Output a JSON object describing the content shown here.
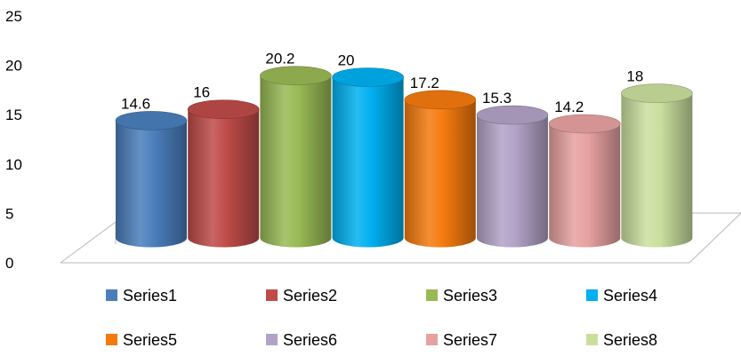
{
  "chart_data": {
    "type": "bar",
    "style": "3d-cylinder",
    "title": "",
    "xlabel": "",
    "ylabel": "",
    "ylim": [
      0,
      25
    ],
    "yticks": [
      0,
      5,
      10,
      15,
      20,
      25
    ],
    "grid": false,
    "legend_position": "bottom",
    "series": [
      {
        "name": "Series1",
        "value": 14.6,
        "label": "14.6",
        "color": "#4a7ebb"
      },
      {
        "name": "Series2",
        "value": 16,
        "label": "16",
        "color": "#be4b48"
      },
      {
        "name": "Series3",
        "value": 20.2,
        "label": "20.2",
        "color": "#98b954"
      },
      {
        "name": "Series4",
        "value": 20,
        "label": "20",
        "color": "#00b0f0"
      },
      {
        "name": "Series5",
        "value": 17.2,
        "label": "17.2",
        "color": "#f47a0e"
      },
      {
        "name": "Series6",
        "value": 15.3,
        "label": "15.3",
        "color": "#b2a2c7"
      },
      {
        "name": "Series7",
        "value": 14.2,
        "label": "14.2",
        "color": "#e6a1a0"
      },
      {
        "name": "Series8",
        "value": 18,
        "label": "18",
        "color": "#cadf9e"
      }
    ]
  }
}
